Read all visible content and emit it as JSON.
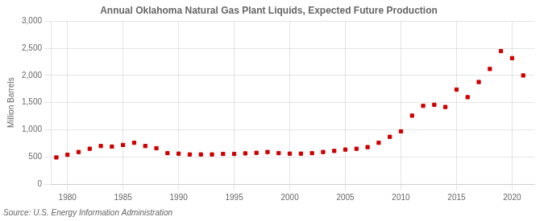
{
  "chart_data": {
    "type": "scatter",
    "title": "Annual Oklahoma Natural Gas Plant Liquids, Expected Future Production",
    "ylabel": "Million Barrels",
    "annotation": "Source: U.S. Energy Information Administration",
    "x": [
      1979,
      1980,
      1981,
      1982,
      1983,
      1984,
      1985,
      1986,
      1987,
      1988,
      1989,
      1990,
      1991,
      1992,
      1993,
      1994,
      1995,
      1996,
      1997,
      1998,
      1999,
      2000,
      2001,
      2002,
      2003,
      2004,
      2005,
      2006,
      2007,
      2008,
      2009,
      2010,
      2011,
      2012,
      2013,
      2014,
      2015,
      2016,
      2017,
      2018,
      2019,
      2020,
      2021
    ],
    "values": [
      490,
      540,
      590,
      650,
      700,
      690,
      720,
      760,
      700,
      660,
      570,
      560,
      545,
      545,
      545,
      555,
      555,
      565,
      575,
      590,
      570,
      560,
      560,
      570,
      590,
      610,
      635,
      650,
      680,
      760,
      870,
      970,
      1260,
      1440,
      1460,
      1420,
      1740,
      1600,
      1880,
      2120,
      2450,
      2320,
      2000
    ],
    "color": "#cc0000",
    "marker": "square",
    "xlim": [
      1978.5,
      2022
    ],
    "xticks": [
      1980,
      1985,
      1990,
      1995,
      2000,
      2005,
      2010,
      2015,
      2020
    ],
    "ylim": [
      0,
      3000
    ],
    "yticks": [
      0,
      500,
      {
        "value": 1000,
        "label": "1,000"
      },
      {
        "value": 1500,
        "label": "1,500"
      },
      {
        "value": 2000,
        "label": "2,000"
      },
      {
        "value": 2500,
        "label": "2,500"
      },
      {
        "value": 3000,
        "label": "3,000"
      }
    ],
    "grid": true
  }
}
